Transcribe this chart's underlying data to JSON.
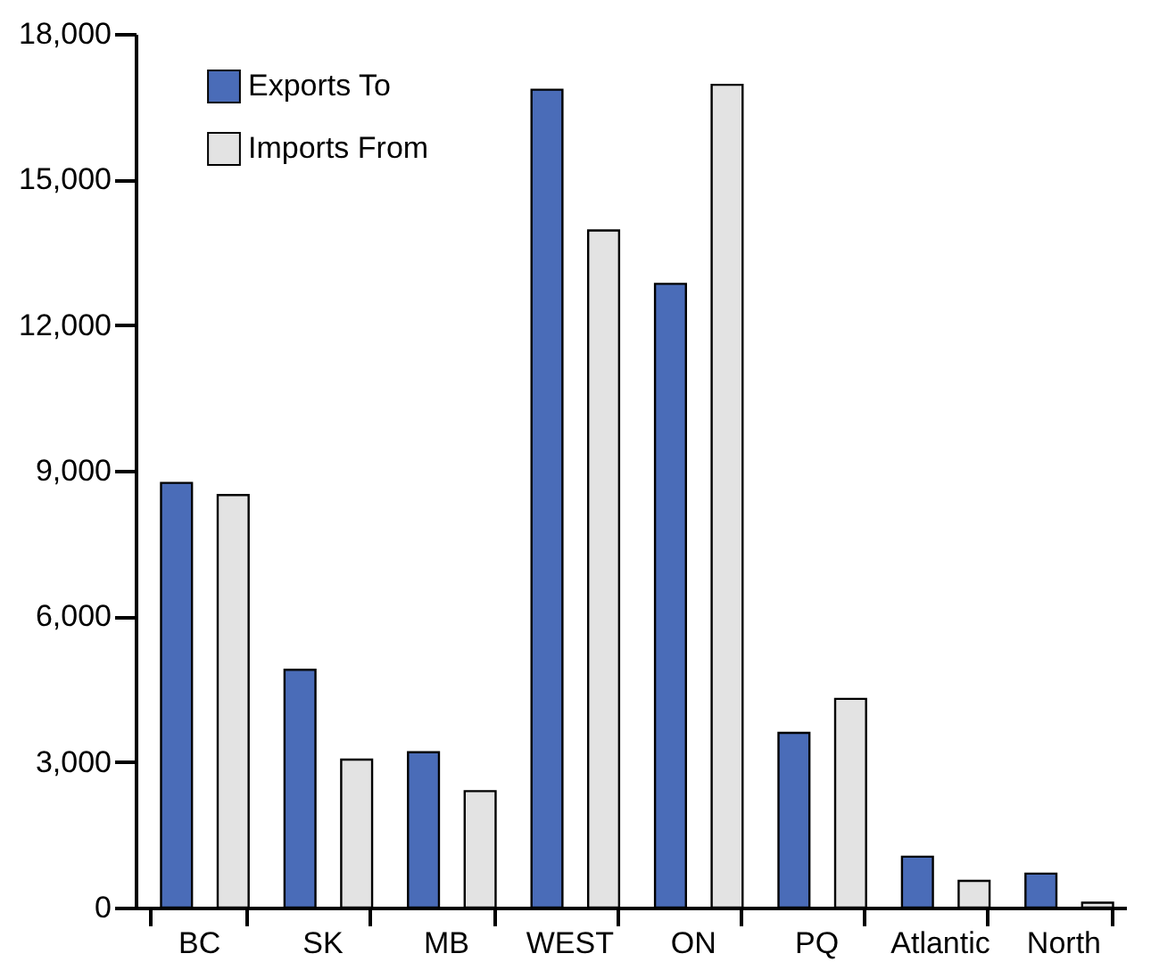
{
  "chart_data": {
    "type": "bar",
    "categories": [
      "BC",
      "SK",
      "MB",
      "WEST",
      "ON",
      "PQ",
      "Atlantic",
      "North"
    ],
    "series": [
      {
        "name": "Exports To",
        "color": "#4a6cb8",
        "values": [
          8750,
          4900,
          3200,
          16850,
          12850,
          3600,
          1050,
          700
        ]
      },
      {
        "name": "Imports From",
        "color": "#e3e3e3",
        "values": [
          8500,
          3050,
          2400,
          13950,
          16950,
          4300,
          550,
          100
        ]
      }
    ],
    "ylim": [
      0,
      18000
    ],
    "yticks": [
      {
        "value": 0,
        "label": "0"
      },
      {
        "value": 3000,
        "label": "3,000"
      },
      {
        "value": 6000,
        "label": "6,000"
      },
      {
        "value": 9000,
        "label": "9,000"
      },
      {
        "value": 12000,
        "label": "12,000"
      },
      {
        "value": 15000,
        "label": "15,000"
      },
      {
        "value": 18000,
        "label": "18,000"
      }
    ],
    "grid": false,
    "legend": "top left"
  }
}
